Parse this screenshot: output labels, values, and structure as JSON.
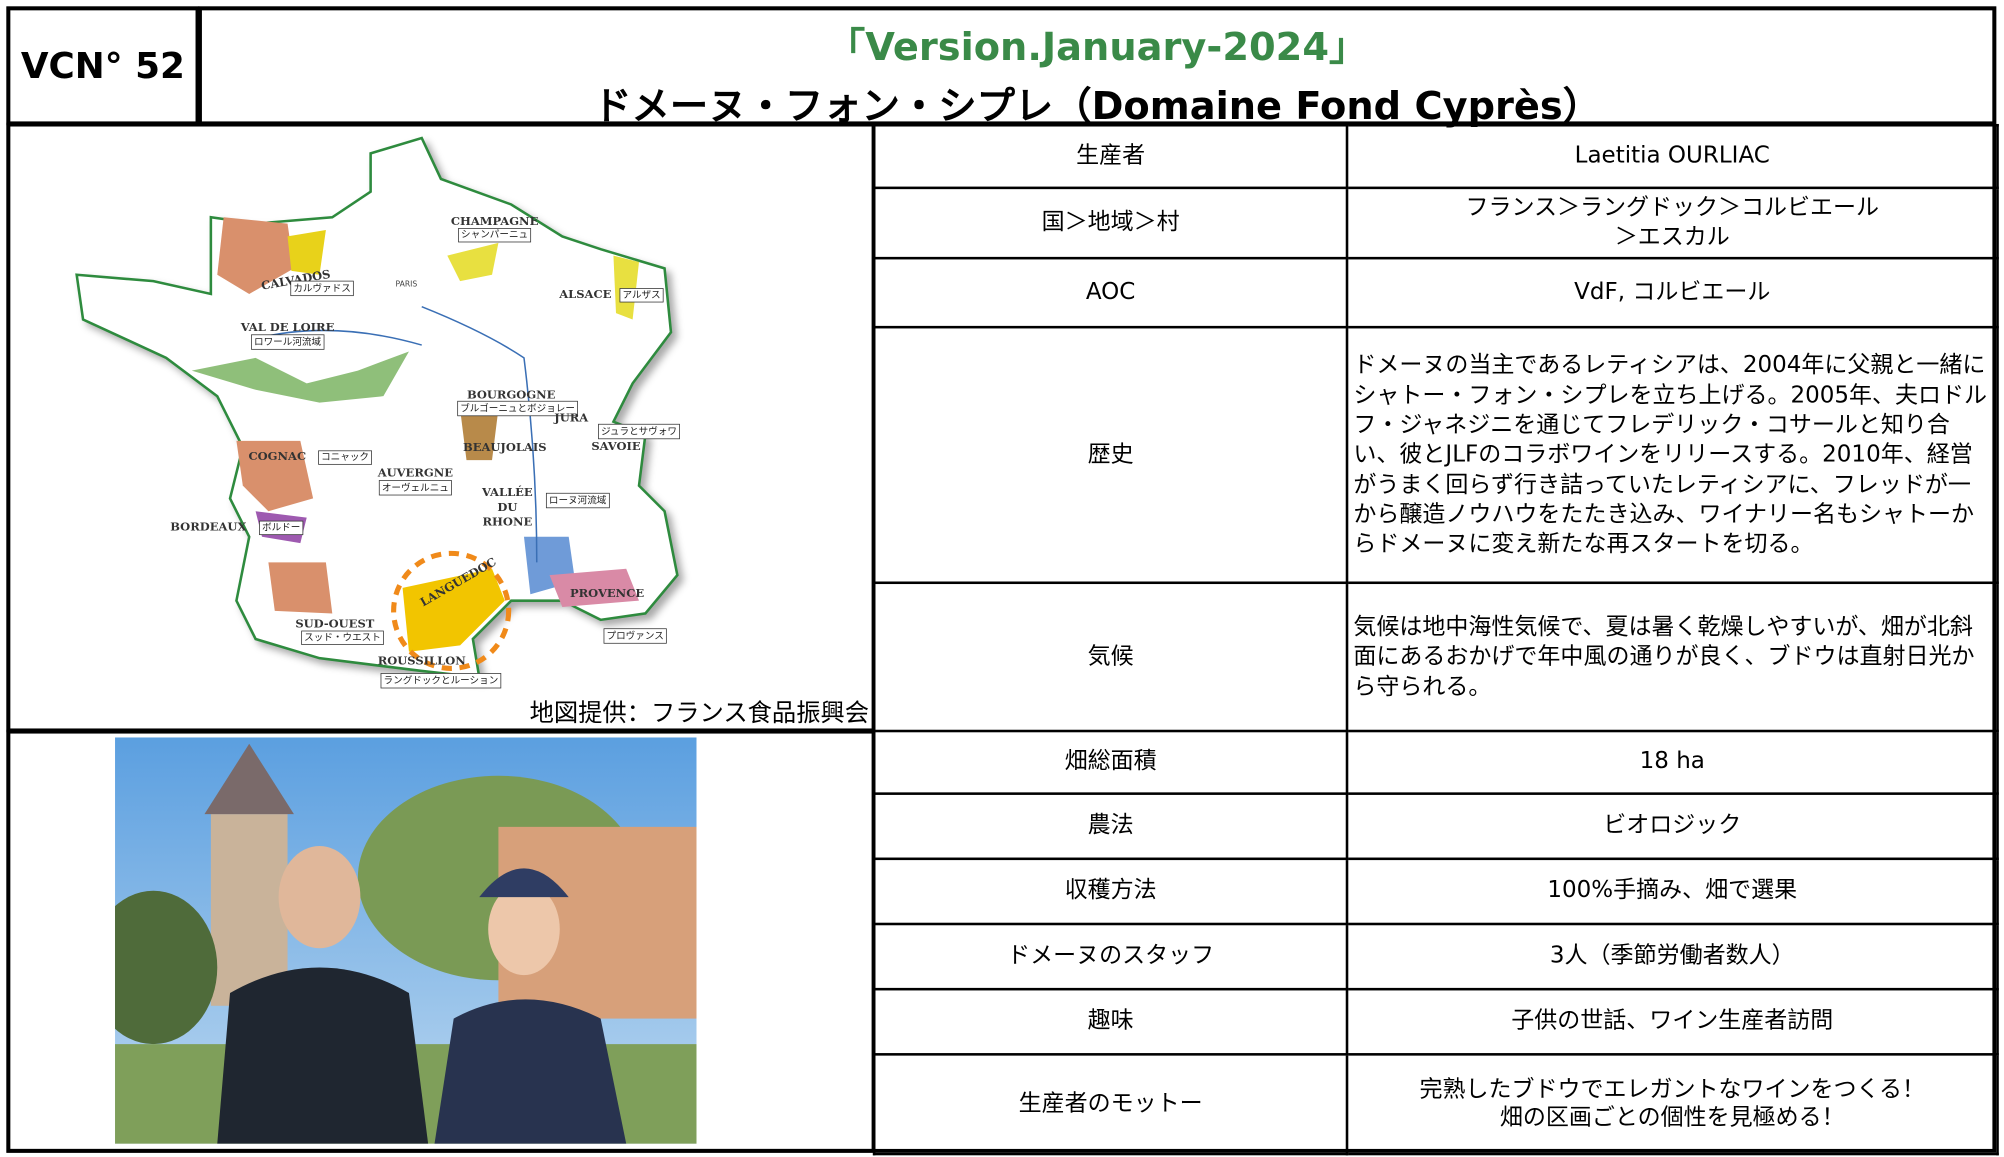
{
  "header": {
    "id": "VCN° 52",
    "version": "「Version.January-2024」",
    "title": "ドメーヌ・フォン・シプレ（Domaine Fond Cyprès）"
  },
  "map": {
    "labels": [
      "CALVADOS",
      "カルヴァドス",
      "CHAMPAGNE",
      "シャンパーニュ",
      "PARIS",
      "ALSACE",
      "アルザス",
      "VAL DE LOIRE",
      "ロワール河流域",
      "BOURGOGNE",
      "ブルゴーニュとボジョレー",
      "JURA",
      "ジュラとサヴォワ",
      "SAVOIE",
      "COGNAC",
      "コニャック",
      "AUVERGNE",
      "オーヴェルニュ",
      "BEAUJOLAIS",
      "VALLÉE",
      "DU",
      "RHONE",
      "ローヌ河流域",
      "BORDEAUX",
      "ボルドー",
      "LANGUEDOC",
      "PROVENCE",
      "プロヴァンス",
      "SUD-OUEST",
      "スッド・ウエスト",
      "ROUSSILLON",
      "ラングドックとルーション"
    ],
    "credit": "地図提供：フランス食品振興会"
  },
  "table": {
    "rows": [
      [
        "生産者",
        "Laetitia OURLIAC"
      ],
      [
        "国＞地域＞村",
        "フランス＞ラングドック＞コルビエール\n＞エスカル"
      ],
      [
        "AOC",
        "VdF, コルビエール"
      ],
      [
        "歴史",
        "ドメーヌの当主であるレティシアは、2004年に父親と一緒にシャトー・フォン・シプレを立ち上げる。2005年、夫ロドルフ・ジャネジニを通じてフレデリック・コサールと知り合い、彼とJLFのコラボワインをリリースする。2010年、経営がうまく回らず行き詰っていたレティシアに、フレッドが一から醸造ノウハウをたたき込み、ワイナリー名もシャトーからドメーヌに変え新たな再スタートを切る。"
      ],
      [
        "気候",
        "気候は地中海性気候で、夏は暑く乾燥しやすいが、畑が北斜面にあるおかげで年中風の通りが良く、ブドウは直射日光から守られる。"
      ],
      [
        "畑総面積",
        "18 ha"
      ],
      [
        "農法",
        "ビオロジック"
      ],
      [
        "収穫方法",
        "100%手摘み、畑で選果"
      ],
      [
        "ドメーヌのスタッフ",
        "3人（季節労働者数人）"
      ],
      [
        "趣味",
        "子供の世話、ワイン生産者訪問"
      ],
      [
        "生産者のモットー",
        "完熟したブドウでエレガントなワインをつくる！\n畑の区画ごとの個性を見極める！"
      ]
    ]
  }
}
